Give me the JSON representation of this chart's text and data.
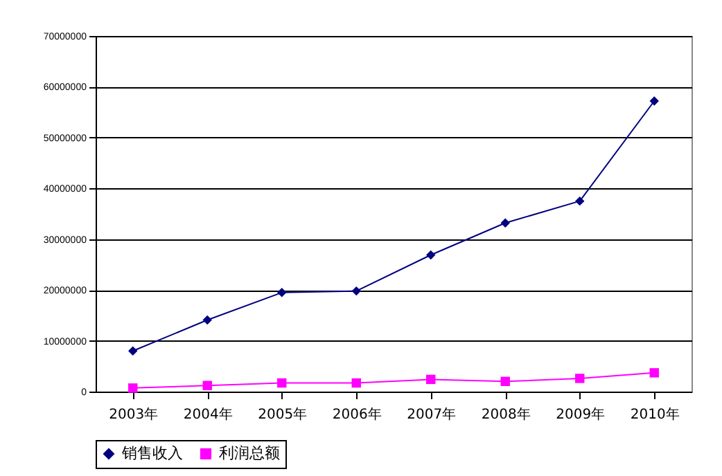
{
  "chart_data": {
    "type": "line",
    "categories": [
      "2003年",
      "2004年",
      "2005年",
      "2006年",
      "2007年",
      "2008年",
      "2009年",
      "2010年"
    ],
    "series": [
      {
        "name": "销售收入",
        "color": "#000080",
        "marker": "diamond",
        "values": [
          8000000,
          14100000,
          19500000,
          19800000,
          26900000,
          33200000,
          37500000,
          57200000
        ]
      },
      {
        "name": "利润总额",
        "color": "#ff00ff",
        "marker": "square",
        "values": [
          700000,
          1200000,
          1700000,
          1700000,
          2400000,
          2000000,
          2600000,
          3700000
        ]
      }
    ],
    "ylim": [
      0,
      70000000
    ],
    "yticks": [
      0,
      10000000,
      20000000,
      30000000,
      40000000,
      50000000,
      60000000,
      70000000
    ],
    "grid": "y",
    "legend": "bottom",
    "line_style": "solid"
  }
}
